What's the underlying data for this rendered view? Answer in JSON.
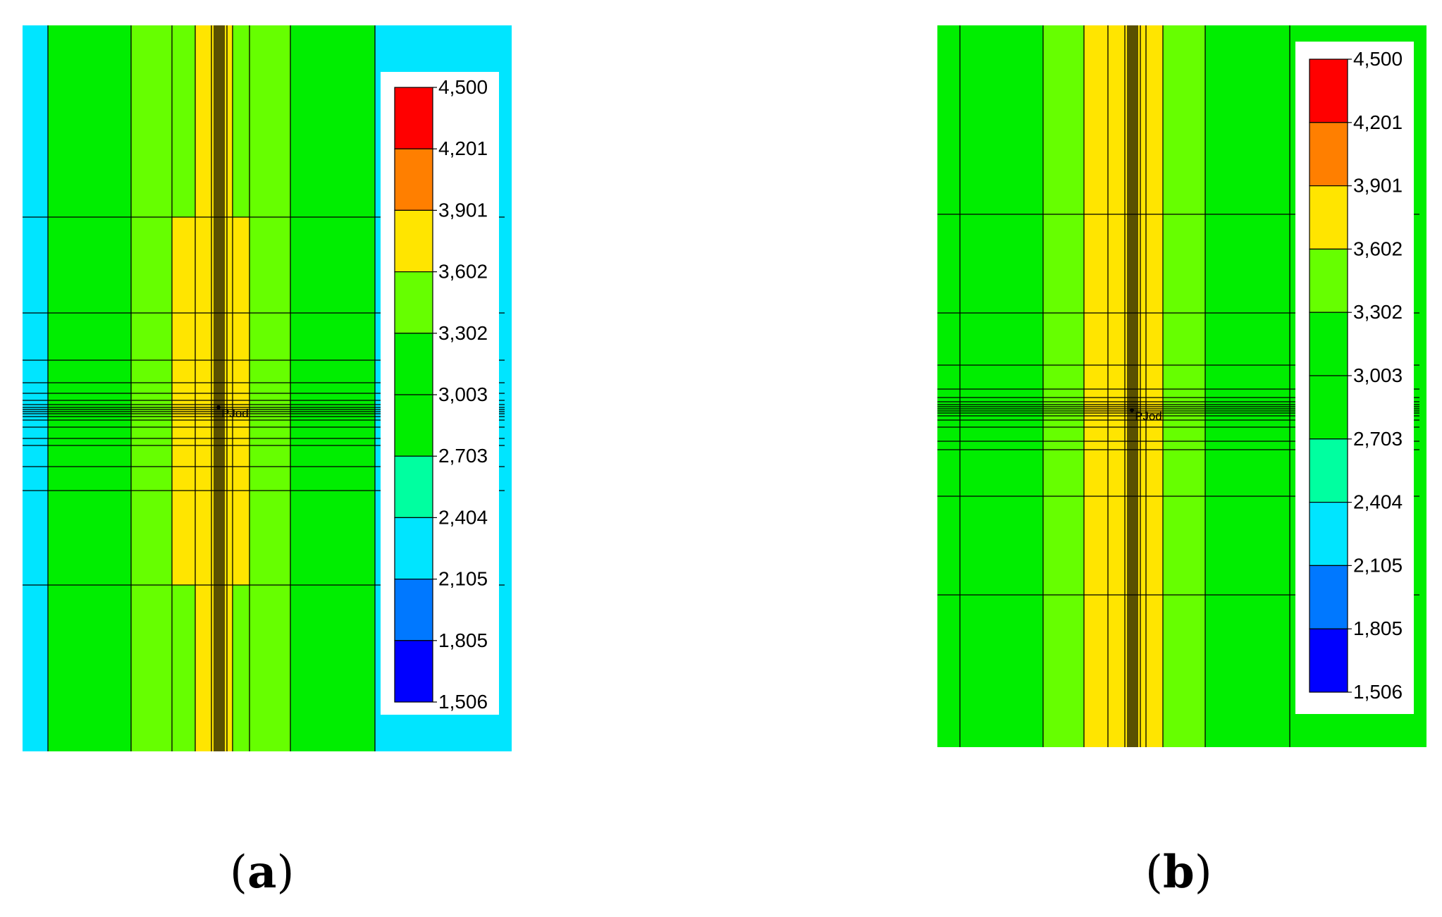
{
  "chart_data": [
    {
      "type": "heatmap",
      "panel_label": "a",
      "well_label": "PJod",
      "background_color": "#00E5FF",
      "legend_ticks": [
        "4,500",
        "4,201",
        "3,901",
        "3,602",
        "3,302",
        "3,003",
        "2,703",
        "2,404",
        "2,105",
        "1,805",
        "1,506"
      ],
      "legend_colors": [
        "#FF0000",
        "#FF7F00",
        "#FFE500",
        "#66FF00",
        "#00EE00",
        "#00EE00",
        "#00FFA0",
        "#00E5FF",
        "#0078FF",
        "#0000FF"
      ],
      "zone_colors": {
        "outer": "#00E5FF",
        "main": "#00EE00",
        "mid": "#66FF00",
        "inner": "#FFE500"
      }
    },
    {
      "type": "heatmap",
      "panel_label": "b",
      "well_label": "PJod",
      "background_color": "#00EE00",
      "legend_ticks": [
        "4,500",
        "4,201",
        "3,901",
        "3,602",
        "3,302",
        "3,003",
        "2,703",
        "2,404",
        "2,105",
        "1,805",
        "1,506"
      ],
      "legend_colors": [
        "#FF0000",
        "#FF7F00",
        "#FFE500",
        "#66FF00",
        "#00EE00",
        "#00EE00",
        "#00FFA0",
        "#00E5FF",
        "#0078FF",
        "#0000FF"
      ],
      "zone_colors": {
        "outer": "#00EE00",
        "main": "#00EE00",
        "mid": "#66FF00",
        "inner": "#FFE500"
      }
    }
  ]
}
